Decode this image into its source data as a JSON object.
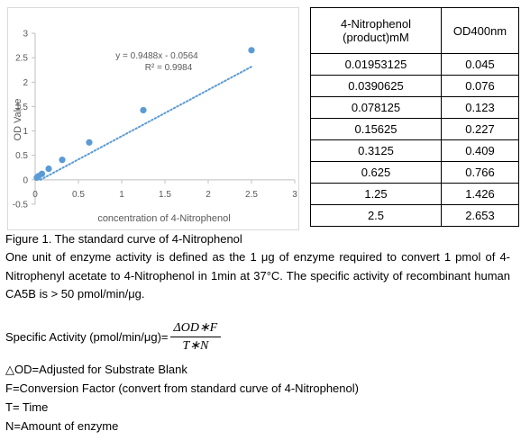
{
  "chart_data": {
    "type": "scatter",
    "xlabel": "concentration of 4-Nitrophenol",
    "ylabel": "OD Value",
    "xlim": [
      0,
      3
    ],
    "ylim": [
      -0.5,
      3
    ],
    "x_ticks": [
      0,
      0.5,
      1,
      1.5,
      2,
      2.5,
      3
    ],
    "x_tick_labels": [
      "0",
      "0.5",
      "1",
      "1.5",
      "2",
      "2.5",
      "3"
    ],
    "y_ticks": [
      -0.5,
      0,
      0.5,
      1,
      1.5,
      2,
      2.5,
      3
    ],
    "y_tick_labels": [
      "-0.5",
      "0",
      "0.5",
      "1",
      "1.5",
      "2",
      "2.5",
      "3"
    ],
    "grid": false,
    "series": [
      {
        "x": [
          0.01953125,
          0.0390625,
          0.078125,
          0.15625,
          0.3125,
          0.625,
          1.25,
          2.5
        ],
        "y": [
          0.045,
          0.076,
          0.123,
          0.227,
          0.409,
          0.766,
          1.426,
          2.653
        ],
        "color": "#5b9bd5"
      }
    ],
    "trendline": {
      "slope": 0.9488,
      "intercept": -0.0564,
      "style": "dotted",
      "color": "#5b9bd5"
    },
    "annotations": [
      "y = 0.9488x - 0.0564",
      "R² = 0.9984"
    ]
  },
  "table": {
    "headers": [
      "4-Nitrophenol (product)mM",
      "OD400nm"
    ],
    "rows": [
      [
        "0.01953125",
        "0.045"
      ],
      [
        "0.0390625",
        "0.076"
      ],
      [
        "0.078125",
        "0.123"
      ],
      [
        "0.15625",
        "0.227"
      ],
      [
        "0.3125",
        "0.409"
      ],
      [
        "0.625",
        "0.766"
      ],
      [
        "1.25",
        "1.426"
      ],
      [
        "2.5",
        "2.653"
      ]
    ]
  },
  "text": {
    "caption": "Figure 1. The standard curve of 4-Nitrophenol",
    "definition": "One unit of enzyme activity is defined as the 1 μg of enzyme required to convert 1 pmol of 4-Nitrophenyl acetate to 4-Nitrophenol in 1min at 37°C. The specific activity of recombinant human CA5B is > 50 pmol/min/μg.",
    "formula_label": "Specific Activity (pmol/min/μg)=",
    "formula_numerator": "ΔOD∗F",
    "formula_denominator": "T∗N",
    "legend": [
      "△OD=Adjusted for Substrate Blank",
      "F=Conversion Factor (convert from standard curve of 4-Nitrophenol)",
      "T= Time",
      "N=Amount of enzyme"
    ]
  }
}
